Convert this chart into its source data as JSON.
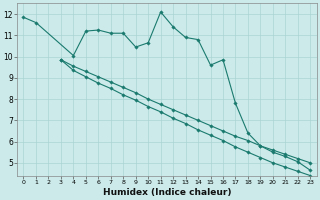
{
  "xlabel": "Humidex (Indice chaleur)",
  "bg_color": "#cceaea",
  "line_color": "#1a7a6e",
  "grid_color": "#aad4d4",
  "xlim": [
    -0.5,
    23.5
  ],
  "ylim": [
    4.4,
    12.5
  ],
  "xticks": [
    0,
    1,
    2,
    3,
    4,
    5,
    6,
    7,
    8,
    9,
    10,
    11,
    12,
    13,
    14,
    15,
    16,
    17,
    18,
    19,
    20,
    21,
    22,
    23
  ],
  "yticks": [
    5,
    6,
    7,
    8,
    9,
    10,
    11,
    12
  ],
  "curve1_x": [
    0,
    1,
    4,
    5,
    6,
    7,
    8,
    9,
    10,
    11,
    12,
    13,
    14,
    15,
    16,
    17,
    18,
    19,
    20,
    21,
    22,
    23
  ],
  "curve1_y": [
    11.85,
    11.6,
    10.05,
    11.2,
    11.25,
    11.1,
    11.1,
    10.45,
    10.65,
    12.1,
    11.4,
    10.9,
    10.8,
    9.6,
    9.85,
    7.8,
    6.4,
    5.8,
    5.5,
    5.3,
    5.05,
    4.65
  ],
  "curve2_x": [
    3,
    4,
    5,
    6,
    7,
    8,
    9,
    10,
    11,
    12,
    13,
    14,
    15,
    16,
    17,
    18,
    19,
    20,
    21,
    22,
    23
  ],
  "curve2_y": [
    9.85,
    9.55,
    9.3,
    9.05,
    8.8,
    8.55,
    8.3,
    8.0,
    7.75,
    7.5,
    7.25,
    7.0,
    6.75,
    6.5,
    6.25,
    6.05,
    5.8,
    5.6,
    5.4,
    5.2,
    5.0
  ],
  "curve3_x": [
    3,
    4,
    5,
    6,
    7,
    8,
    9,
    10,
    11,
    12,
    13,
    14,
    15,
    16,
    17,
    18,
    19,
    20,
    21,
    22,
    23
  ],
  "curve3_y": [
    9.85,
    9.35,
    9.05,
    8.75,
    8.5,
    8.2,
    7.95,
    7.65,
    7.4,
    7.1,
    6.85,
    6.55,
    6.3,
    6.05,
    5.75,
    5.5,
    5.25,
    5.0,
    4.8,
    4.6,
    4.4
  ]
}
